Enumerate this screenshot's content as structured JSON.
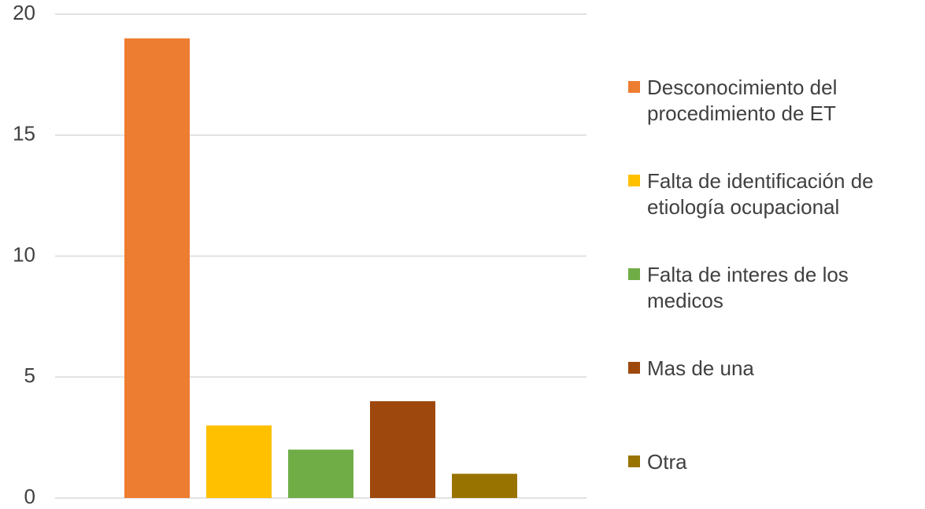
{
  "chart_data": {
    "type": "bar",
    "categories": [
      null
    ],
    "series": [
      {
        "name": "Desconocimiento del procedimiento de ET",
        "color": "#ed7d31",
        "values": [
          19
        ]
      },
      {
        "name": "Falta de identificación de etiología ocupacional",
        "color": "#ffc000",
        "values": [
          3
        ]
      },
      {
        "name": "Falta de interes de los medicos",
        "color": "#70ad47",
        "values": [
          2
        ]
      },
      {
        "name": "Mas de una",
        "color": "#9e480e",
        "values": [
          4
        ]
      },
      {
        "name": "Otra",
        "color": "#997300",
        "values": [
          1
        ]
      }
    ],
    "ylim": [
      0,
      20
    ],
    "yticks": [
      0,
      5,
      10,
      15,
      20
    ],
    "grid": true,
    "legend": "right"
  }
}
